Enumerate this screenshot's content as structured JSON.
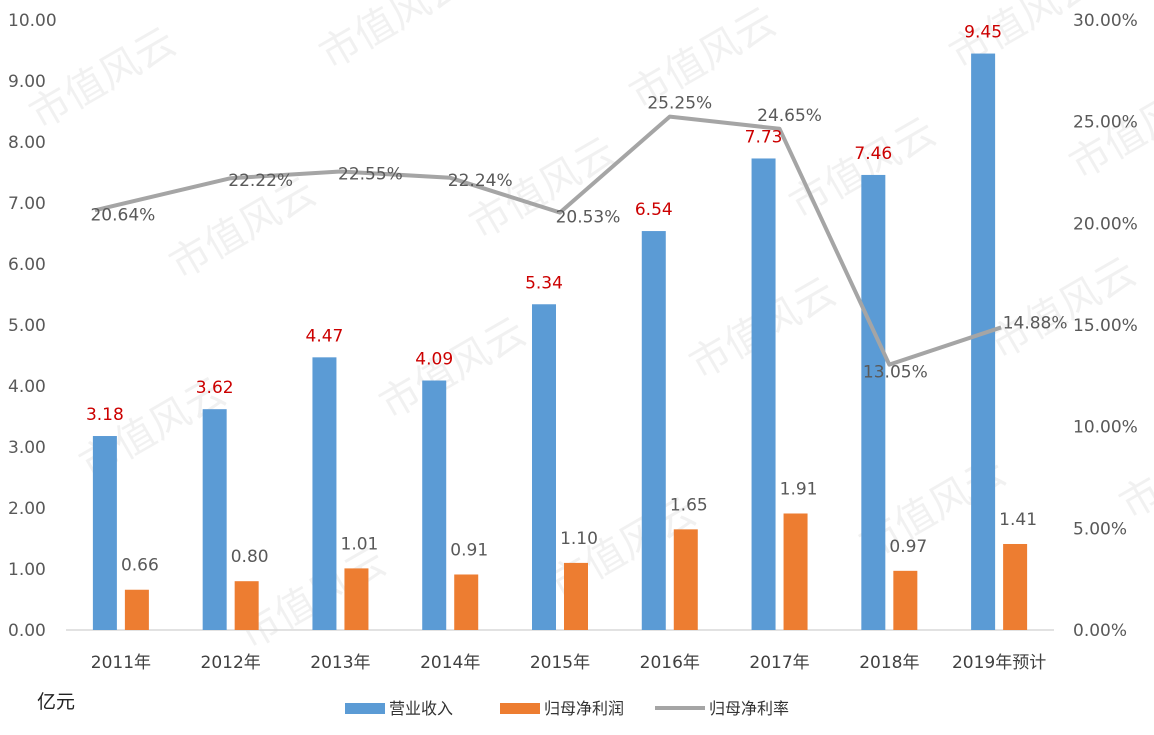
{
  "chart_data": {
    "type": "bar",
    "categories": [
      "2011年",
      "2012年",
      "2013年",
      "2014年",
      "2015年",
      "2016年",
      "2017年",
      "2018年",
      "2019年预计"
    ],
    "series": [
      {
        "name": "营业收入",
        "kind": "bar",
        "axis": "left",
        "color": "#5b9bd5",
        "values": [
          3.18,
          3.62,
          4.47,
          4.09,
          5.34,
          6.54,
          7.73,
          7.46,
          9.45
        ],
        "labels": [
          "3.18",
          "3.62",
          "4.47",
          "4.09",
          "5.34",
          "6.54",
          "7.73",
          "7.46",
          "9.45"
        ],
        "label_color": "#cc0000"
      },
      {
        "name": "归母净利润",
        "kind": "bar",
        "axis": "left",
        "color": "#ed7d31",
        "values": [
          0.66,
          0.8,
          1.01,
          0.91,
          1.1,
          1.65,
          1.91,
          0.97,
          1.41
        ],
        "labels": [
          "0.66",
          "0.80",
          "1.01",
          "0.91",
          "1.10",
          "1.65",
          "1.91",
          "0.97",
          "1.41"
        ]
      },
      {
        "name": "归母净利率",
        "kind": "line",
        "axis": "right",
        "color": "#a5a5a5",
        "values": [
          20.64,
          22.22,
          22.55,
          22.24,
          20.53,
          25.25,
          24.65,
          13.05,
          14.88
        ],
        "labels": [
          "20.64%",
          "22.22%",
          "22.55%",
          "22.24%",
          "20.53%",
          "25.25%",
          "24.65%",
          "13.05%",
          "14.88%"
        ]
      }
    ],
    "y_left": {
      "ylim": [
        0,
        10
      ],
      "ticks": [
        "0.00",
        "1.00",
        "2.00",
        "3.00",
        "4.00",
        "5.00",
        "6.00",
        "7.00",
        "8.00",
        "9.00",
        "10.00"
      ],
      "unit_label": "亿元"
    },
    "y_right": {
      "ylim": [
        0,
        30
      ],
      "ticks": [
        "0.00%",
        "5.00%",
        "10.00%",
        "15.00%",
        "20.00%",
        "25.00%",
        "30.00%"
      ]
    },
    "grid": false,
    "legend_position": "bottom",
    "watermark": "市值风云"
  }
}
